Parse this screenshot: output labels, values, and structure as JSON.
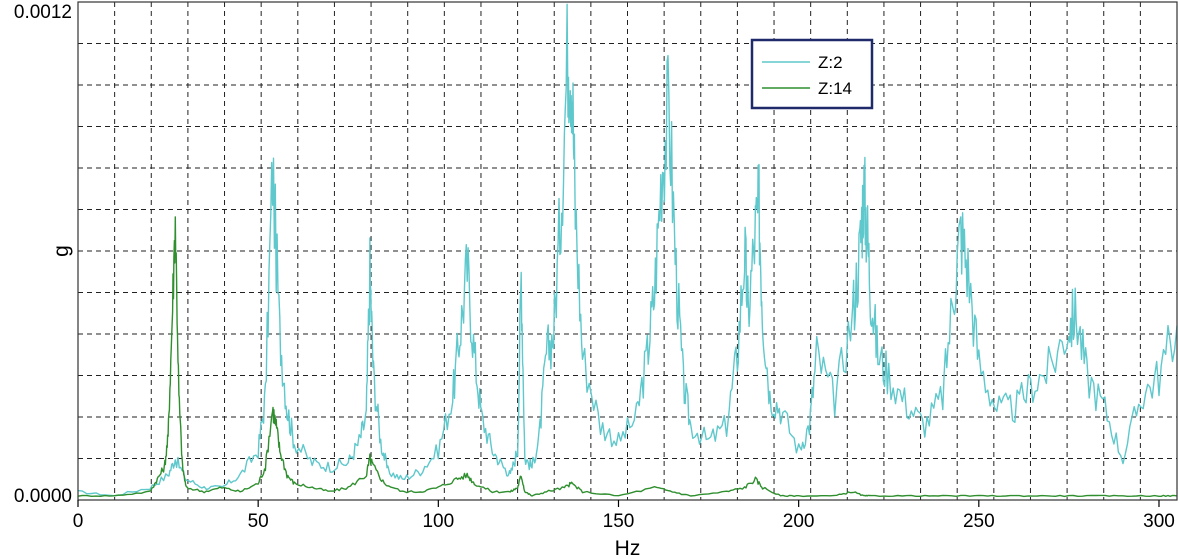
{
  "chart_data": {
    "type": "line",
    "xlabel": "Hz",
    "ylabel": "g",
    "xlim": [
      0,
      305
    ],
    "ylim": [
      0,
      0.0012
    ],
    "x_ticks": [
      0,
      50,
      100,
      150,
      200,
      250,
      300
    ],
    "x_tick_labels": [
      "0",
      "50",
      "100",
      "150",
      "200",
      "250",
      "300"
    ],
    "y_tick_labels": [
      {
        "value": 0,
        "label": "0.0000"
      },
      {
        "value": 0.0012,
        "label": "0.0012"
      }
    ],
    "grid": true,
    "legend_position": "top-right",
    "series": [
      {
        "name": "Z:2",
        "color": "#5fc8cc",
        "x": [
          0,
          10,
          20,
          25,
          27,
          30,
          35,
          40,
          45,
          50,
          52,
          54,
          56,
          58,
          60,
          65,
          70,
          75,
          78,
          80,
          81,
          82,
          84,
          86,
          90,
          95,
          100,
          104,
          106,
          108,
          110,
          112,
          115,
          118,
          120,
          122,
          123,
          124,
          126,
          128,
          130,
          132,
          134,
          136,
          137,
          138,
          140,
          145,
          150,
          155,
          158,
          160,
          162,
          164,
          166,
          168,
          170,
          175,
          180,
          183,
          185,
          186,
          188,
          189,
          190,
          192,
          195,
          200,
          203,
          205,
          210,
          215,
          217,
          218,
          219,
          220,
          222,
          225,
          230,
          235,
          240,
          243,
          245,
          247,
          250,
          255,
          260,
          265,
          270,
          275,
          277,
          280,
          285,
          290,
          295,
          300,
          305
        ],
        "values": [
          2e-05,
          1e-05,
          3e-05,
          6e-05,
          0.0001,
          5e-05,
          3e-05,
          3e-05,
          6e-05,
          0.00012,
          0.00025,
          0.0008,
          0.0004,
          0.00022,
          0.00014,
          9e-05,
          8e-05,
          9e-05,
          0.00014,
          0.0002,
          0.00055,
          0.0003,
          0.00014,
          7e-05,
          5e-05,
          7e-05,
          0.00012,
          0.00025,
          0.0004,
          0.00056,
          0.00035,
          0.0002,
          0.00012,
          8e-05,
          6e-05,
          0.00012,
          0.00055,
          0.0001,
          8e-05,
          0.00015,
          0.00035,
          0.0004,
          0.0007,
          0.0011,
          0.00105,
          0.0007,
          0.00035,
          0.00018,
          0.00014,
          0.0002,
          0.00035,
          0.0005,
          0.0008,
          0.00095,
          0.00055,
          0.00028,
          0.00018,
          0.00014,
          0.00018,
          0.00035,
          0.0006,
          0.00045,
          0.00065,
          0.0007,
          0.00045,
          0.00025,
          0.00022,
          0.00012,
          0.00018,
          0.00035,
          0.00024,
          0.00045,
          0.0006,
          0.00075,
          0.00065,
          0.0005,
          0.00035,
          0.0003,
          0.00023,
          0.00018,
          0.00025,
          0.0005,
          0.00065,
          0.00055,
          0.00033,
          0.00022,
          0.00022,
          0.00028,
          0.00032,
          0.00042,
          0.00045,
          0.0003,
          0.00022,
          0.0001,
          0.00025,
          0.0003,
          0.00042
        ]
      },
      {
        "name": "Z:14",
        "color": "#2f8f2f",
        "x": [
          0,
          10,
          20,
          22,
          24,
          25,
          26,
          27,
          28,
          29,
          30,
          35,
          40,
          45,
          50,
          52,
          54,
          55,
          56,
          58,
          60,
          65,
          70,
          75,
          80,
          81,
          82,
          85,
          90,
          95,
          100,
          105,
          108,
          110,
          115,
          120,
          122,
          123,
          124,
          126,
          130,
          135,
          137,
          140,
          150,
          160,
          165,
          170,
          180,
          185,
          188,
          190,
          195,
          200,
          210,
          215,
          218,
          220,
          230,
          240,
          250,
          260,
          270,
          280,
          290,
          300,
          305
        ],
        "values": [
          1e-05,
          1e-05,
          2e-05,
          5e-05,
          8e-05,
          0.00015,
          0.0004,
          0.00068,
          0.00025,
          8e-05,
          3e-05,
          2e-05,
          3e-05,
          2e-05,
          4e-05,
          8e-05,
          0.00022,
          0.00018,
          0.00012,
          6e-05,
          4e-05,
          3e-05,
          2e-05,
          3e-05,
          6e-05,
          0.0001,
          8e-05,
          4e-05,
          2e-05,
          2e-05,
          3e-05,
          5e-05,
          6e-05,
          4e-05,
          2e-05,
          2e-05,
          3e-05,
          6e-05,
          2e-05,
          1e-05,
          2e-05,
          3e-05,
          4e-05,
          2e-05,
          1e-05,
          3e-05,
          2e-05,
          1e-05,
          2e-05,
          3e-05,
          5e-05,
          3e-05,
          1e-05,
          1e-05,
          1e-05,
          2e-05,
          1e-05,
          1e-05,
          1e-05,
          1e-05,
          1e-05,
          1e-05,
          1e-05,
          1e-05,
          1e-05,
          1e-05,
          1e-05
        ]
      }
    ]
  }
}
